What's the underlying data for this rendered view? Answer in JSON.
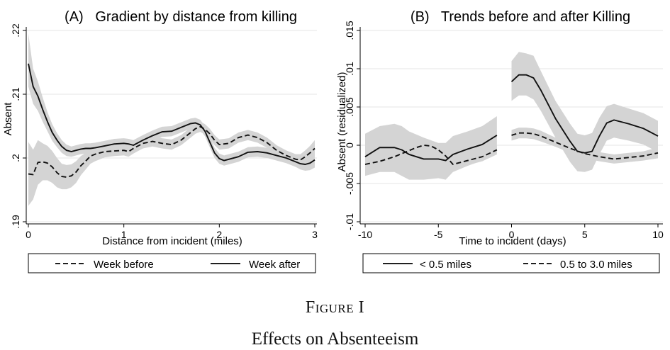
{
  "figure": {
    "label": "Figure I",
    "title": "Effects on Absenteeism"
  },
  "chart_data": [
    {
      "type": "line",
      "title": "(A)   Gradient by distance from killing",
      "xlabel": "Distance from incident (miles)",
      "ylabel": "Absent",
      "xlim": [
        0,
        3
      ],
      "ylim": [
        0.19,
        0.22
      ],
      "xticks": [
        0,
        1,
        2,
        3
      ],
      "xtick_labels": [
        "0",
        "1",
        "2",
        "3"
      ],
      "yticks": [
        0.19,
        0.2,
        0.21,
        0.22
      ],
      "ytick_labels": [
        ".19",
        ".2",
        ".21",
        ".22"
      ],
      "grid": true,
      "legend": {
        "placement": "bottom",
        "entries": [
          "Week before",
          "Week after"
        ]
      },
      "series": [
        {
          "name": "Week before",
          "style": "dashed",
          "x": [
            0,
            0.05,
            0.1,
            0.15,
            0.2,
            0.25,
            0.3,
            0.35,
            0.4,
            0.45,
            0.5,
            0.55,
            0.6,
            0.65,
            0.7,
            0.8,
            0.9,
            1.0,
            1.05,
            1.1,
            1.2,
            1.3,
            1.4,
            1.5,
            1.6,
            1.7,
            1.75,
            1.8,
            1.85,
            1.9,
            1.95,
            2.0,
            2.1,
            2.2,
            2.3,
            2.4,
            2.5,
            2.6,
            2.7,
            2.8,
            2.85,
            2.9,
            2.95,
            3.0
          ],
          "y": [
            0.1975,
            0.1974,
            0.1993,
            0.1994,
            0.1992,
            0.1986,
            0.1977,
            0.1971,
            0.197,
            0.1972,
            0.1978,
            0.1988,
            0.1995,
            0.2003,
            0.2006,
            0.201,
            0.2011,
            0.2012,
            0.201,
            0.2015,
            0.2023,
            0.2026,
            0.2023,
            0.2021,
            0.2028,
            0.204,
            0.2046,
            0.2049,
            0.2045,
            0.2038,
            0.2028,
            0.2021,
            0.2023,
            0.2032,
            0.2036,
            0.2032,
            0.2024,
            0.2012,
            0.2004,
            0.1998,
            0.1997,
            0.2002,
            0.2008,
            0.2015
          ],
          "ci_lower": [
            0.1925,
            0.1935,
            0.1958,
            0.1965,
            0.1965,
            0.1961,
            0.1954,
            0.1951,
            0.1951,
            0.1954,
            0.1961,
            0.1973,
            0.1982,
            0.1991,
            0.1995,
            0.2001,
            0.2003,
            0.2004,
            0.2002,
            0.2007,
            0.2015,
            0.2018,
            0.2015,
            0.2013,
            0.202,
            0.2032,
            0.2038,
            0.2041,
            0.2037,
            0.203,
            0.202,
            0.2013,
            0.2015,
            0.2024,
            0.2028,
            0.2024,
            0.2016,
            0.2004,
            0.1996,
            0.199,
            0.1988,
            0.1992,
            0.1997,
            0.2002
          ],
          "ci_upper": [
            0.2025,
            0.2013,
            0.2028,
            0.2023,
            0.2019,
            0.2011,
            0.2,
            0.1991,
            0.1989,
            0.199,
            0.1995,
            0.2003,
            0.2008,
            0.2015,
            0.2017,
            0.2019,
            0.2019,
            0.202,
            0.2018,
            0.2023,
            0.2031,
            0.2034,
            0.2031,
            0.2029,
            0.2036,
            0.2048,
            0.2054,
            0.2057,
            0.2053,
            0.2046,
            0.2036,
            0.2029,
            0.2031,
            0.204,
            0.2044,
            0.204,
            0.2032,
            0.202,
            0.2012,
            0.2006,
            0.2006,
            0.2012,
            0.2019,
            0.2028
          ]
        },
        {
          "name": "Week after",
          "style": "solid",
          "x": [
            0,
            0.05,
            0.1,
            0.15,
            0.2,
            0.25,
            0.3,
            0.35,
            0.4,
            0.45,
            0.5,
            0.55,
            0.6,
            0.65,
            0.7,
            0.8,
            0.9,
            1.0,
            1.05,
            1.1,
            1.2,
            1.3,
            1.4,
            1.5,
            1.6,
            1.7,
            1.75,
            1.8,
            1.85,
            1.9,
            1.95,
            2.0,
            2.05,
            2.1,
            2.2,
            2.3,
            2.4,
            2.5,
            2.6,
            2.7,
            2.8,
            2.85,
            2.9,
            2.95,
            3.0
          ],
          "y": [
            0.2148,
            0.2112,
            0.2097,
            0.2076,
            0.2057,
            0.204,
            0.2028,
            0.2018,
            0.2012,
            0.201,
            0.2012,
            0.2014,
            0.2015,
            0.2015,
            0.2016,
            0.2019,
            0.2022,
            0.2023,
            0.2022,
            0.202,
            0.2028,
            0.2035,
            0.2041,
            0.2042,
            0.2048,
            0.2054,
            0.2055,
            0.2052,
            0.2042,
            0.2025,
            0.2008,
            0.1999,
            0.1996,
            0.1998,
            0.2002,
            0.2009,
            0.201,
            0.2008,
            0.2004,
            0.2,
            0.1994,
            0.1991,
            0.199,
            0.1992,
            0.1997
          ],
          "ci_lower": [
            0.2112,
            0.2085,
            0.2074,
            0.2057,
            0.2042,
            0.2027,
            0.2017,
            0.2008,
            0.2003,
            0.2002,
            0.2004,
            0.2006,
            0.2007,
            0.2007,
            0.2008,
            0.2011,
            0.2014,
            0.2015,
            0.2014,
            0.2012,
            0.202,
            0.2027,
            0.2033,
            0.2034,
            0.204,
            0.2046,
            0.2047,
            0.2044,
            0.2034,
            0.2017,
            0.2,
            0.1991,
            0.1988,
            0.199,
            0.1994,
            0.2001,
            0.2002,
            0.2,
            0.1996,
            0.1992,
            0.1986,
            0.1982,
            0.198,
            0.1981,
            0.1985
          ],
          "ci_upper": [
            0.2195,
            0.214,
            0.212,
            0.2095,
            0.2072,
            0.2053,
            0.2039,
            0.2028,
            0.2021,
            0.2018,
            0.202,
            0.2022,
            0.2023,
            0.2023,
            0.2024,
            0.2027,
            0.203,
            0.2031,
            0.203,
            0.2028,
            0.2036,
            0.2043,
            0.2049,
            0.205,
            0.2056,
            0.2062,
            0.2063,
            0.206,
            0.205,
            0.2033,
            0.2016,
            0.2007,
            0.2004,
            0.2006,
            0.201,
            0.2017,
            0.2018,
            0.2016,
            0.2012,
            0.2008,
            0.2002,
            0.2,
            0.2,
            0.2003,
            0.2009
          ]
        }
      ]
    },
    {
      "type": "line",
      "title": "(B)   Trends before and after Killing",
      "xlabel": "Time to incident (days)",
      "ylabel": "Absent (residualized)",
      "xlim": [
        -10,
        10
      ],
      "ylim": [
        -0.01,
        0.015
      ],
      "xticks": [
        -10,
        -5,
        0,
        5,
        10
      ],
      "xtick_labels": [
        "-10",
        "-5",
        "0",
        "5",
        "10"
      ],
      "yticks": [
        -0.01,
        -0.005,
        0,
        0.005,
        0.01,
        0.015
      ],
      "ytick_labels": [
        "-.01",
        "-.005",
        "0",
        ".005",
        ".01",
        ".015"
      ],
      "grid": true,
      "legend": {
        "placement": "bottom",
        "entries": [
          "< 0.5 miles",
          "0.5 to 3.0 miles"
        ]
      },
      "series": [
        {
          "name": "< 0.5 miles",
          "style": "solid",
          "segments": [
            {
              "x": [
                -10,
                -9,
                -8,
                -7.5,
                -7,
                -6,
                -5,
                -4.5,
                -4,
                -3,
                -2,
                -1
              ],
              "y": [
                -0.0015,
                -0.0003,
                -0.0003,
                -0.0006,
                -0.0012,
                -0.0018,
                -0.0018,
                -0.002,
                -0.0012,
                -0.0005,
                0.0001,
                0.0013
              ],
              "ci_lower": [
                -0.004,
                -0.0035,
                -0.0035,
                -0.004,
                -0.0045,
                -0.0045,
                -0.0043,
                -0.0045,
                -0.0035,
                -0.0027,
                -0.002,
                -0.0008
              ],
              "ci_upper": [
                0.0015,
                0.0025,
                0.0028,
                0.0025,
                0.0018,
                0.001,
                0.0003,
                0.0003,
                0.0012,
                0.0018,
                0.0025,
                0.0038
              ]
            },
            {
              "x": [
                0,
                0.5,
                1,
                1.5,
                2,
                3,
                4,
                4.5,
                5,
                5.5,
                6,
                6.5,
                7,
                8,
                9,
                10
              ],
              "y": [
                0.0083,
                0.0092,
                0.0092,
                0.0088,
                0.0072,
                0.0035,
                0.0005,
                -0.0008,
                -0.001,
                -0.0008,
                0.0012,
                0.0029,
                0.0033,
                0.0028,
                0.0022,
                0.0012
              ],
              "ci_lower": [
                0.0058,
                0.0065,
                0.0065,
                0.006,
                0.0045,
                0.001,
                -0.0022,
                -0.0034,
                -0.0035,
                -0.0032,
                -0.0012,
                0.0006,
                0.001,
                0.0006,
                0.0001,
                -0.0009
              ],
              "ci_upper": [
                0.011,
                0.0122,
                0.012,
                0.0117,
                0.0097,
                0.0058,
                0.0028,
                0.0015,
                0.0013,
                0.0016,
                0.0036,
                0.0051,
                0.0054,
                0.0048,
                0.0042,
                0.0032
              ]
            }
          ]
        },
        {
          "name": "0.5 to 3.0 miles",
          "style": "dashed",
          "segments": [
            {
              "x": [
                -10,
                -9,
                -8,
                -7,
                -6.5,
                -6,
                -5.5,
                -5,
                -4.5,
                -4,
                -3,
                -2,
                -1
              ],
              "y": [
                -0.0025,
                -0.0021,
                -0.0015,
                -0.0007,
                -0.0003,
                0.0,
                -0.0001,
                -0.0006,
                -0.0014,
                -0.0025,
                -0.002,
                -0.0015,
                -0.0006
              ],
              "ci_lower": [
                -0.0031,
                -0.0027,
                -0.0021,
                -0.0013,
                -0.0009,
                -0.0006,
                -0.0007,
                -0.0012,
                -0.002,
                -0.0031,
                -0.0026,
                -0.0021,
                -0.0012
              ],
              "ci_upper": [
                -0.0019,
                -0.0015,
                -0.0009,
                -0.0001,
                0.0003,
                0.0006,
                0.0005,
                0.0,
                -0.0008,
                -0.0019,
                -0.0014,
                -0.0009,
                0.0
              ]
            },
            {
              "x": [
                0,
                0.5,
                1,
                1.5,
                2,
                3,
                4,
                5,
                6,
                7,
                8,
                9,
                10
              ],
              "y": [
                0.0013,
                0.0016,
                0.0016,
                0.0015,
                0.0012,
                0.0004,
                -0.0004,
                -0.0011,
                -0.0015,
                -0.0018,
                -0.0016,
                -0.0014,
                -0.001
              ],
              "ci_lower": [
                0.0006,
                0.0009,
                0.0009,
                0.0008,
                0.0005,
                -0.0002,
                -0.001,
                -0.0017,
                -0.0021,
                -0.0024,
                -0.0022,
                -0.002,
                -0.0017
              ],
              "ci_upper": [
                0.002,
                0.0023,
                0.0023,
                0.0022,
                0.0019,
                0.001,
                0.0002,
                -0.0005,
                -0.0009,
                -0.0012,
                -0.001,
                -0.0008,
                -0.0003
              ]
            }
          ]
        }
      ]
    }
  ]
}
